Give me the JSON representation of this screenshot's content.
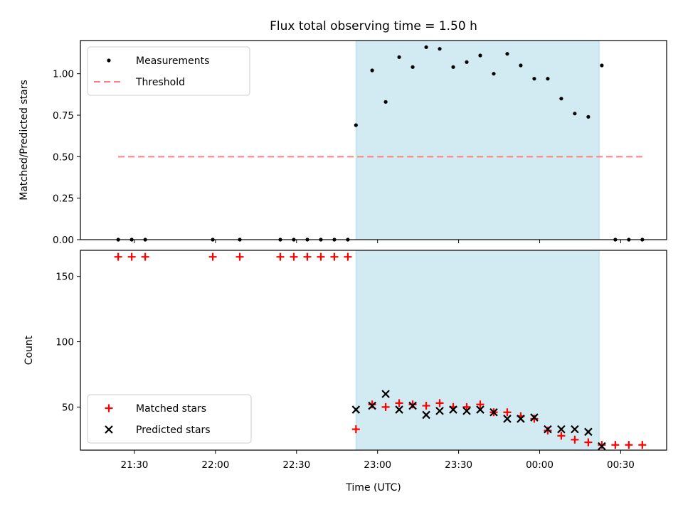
{
  "title": "Flux total observing time = 1.50 h",
  "x_axis": {
    "label": "Time (UTC)",
    "tick_labels": [
      "21:30",
      "22:00",
      "22:30",
      "23:00",
      "23:30",
      "00:00",
      "00:30"
    ]
  },
  "colors": {
    "measurements": "#000000",
    "threshold": "#ff7f7f",
    "matched": "#ff0000",
    "predicted": "#000000",
    "observing_window": "#add8e6"
  },
  "chart_data": [
    {
      "type": "scatter",
      "panel": "top",
      "ylabel": "Matched/Predicted stars",
      "ylim": [
        0,
        1.2
      ],
      "yticks": [
        0.0,
        0.25,
        0.5,
        0.75,
        1.0
      ],
      "ytick_labels": [
        "0.00",
        "0.25",
        "0.50",
        "0.75",
        "1.00"
      ],
      "xlim": [
        "21:10",
        "00:47"
      ],
      "shaded_region": [
        "22:52",
        "00:22"
      ],
      "legend": {
        "position": "upper-left"
      },
      "series": [
        {
          "name": "Measurements",
          "marker": "dot",
          "x": [
            "21:24",
            "21:29",
            "21:34",
            "21:59",
            "22:09",
            "22:24",
            "22:29",
            "22:34",
            "22:39",
            "22:44",
            "22:49",
            "22:52",
            "22:58",
            "23:03",
            "23:08",
            "23:13",
            "23:18",
            "23:23",
            "23:28",
            "23:33",
            "23:38",
            "23:43",
            "23:48",
            "23:53",
            "23:58",
            "00:03",
            "00:08",
            "00:13",
            "00:18",
            "00:23",
            "00:28",
            "00:33",
            "00:38"
          ],
          "y": [
            0,
            0,
            0,
            0,
            0,
            0,
            0,
            0,
            0,
            0,
            0,
            0.69,
            1.02,
            0.83,
            1.1,
            1.04,
            1.16,
            1.15,
            1.04,
            1.07,
            1.11,
            1.0,
            1.12,
            1.05,
            0.97,
            0.97,
            0.85,
            0.76,
            0.74,
            1.05,
            0,
            0,
            0
          ]
        },
        {
          "name": "Threshold",
          "style": "dashed",
          "x": [
            "21:24",
            "00:38"
          ],
          "y": [
            0.5,
            0.5
          ]
        }
      ]
    },
    {
      "type": "scatter",
      "panel": "bottom",
      "ylabel": "Count",
      "ylim": [
        17,
        170
      ],
      "yticks": [
        50,
        100,
        150
      ],
      "ytick_labels": [
        "50",
        "100",
        "150"
      ],
      "xlim": [
        "21:10",
        "00:47"
      ],
      "shaded_region": [
        "22:52",
        "00:22"
      ],
      "legend": {
        "position": "lower-left"
      },
      "series": [
        {
          "name": "Matched stars",
          "marker": "plus",
          "x": [
            "21:24",
            "21:29",
            "21:34",
            "21:59",
            "22:09",
            "22:24",
            "22:29",
            "22:34",
            "22:39",
            "22:44",
            "22:49",
            "22:52",
            "22:58",
            "23:03",
            "23:08",
            "23:13",
            "23:18",
            "23:23",
            "23:28",
            "23:33",
            "23:38",
            "23:43",
            "23:48",
            "23:53",
            "23:58",
            "00:03",
            "00:08",
            "00:13",
            "00:18",
            "00:23",
            "00:28",
            "00:33",
            "00:38"
          ],
          "y": [
            165,
            165,
            165,
            165,
            165,
            165,
            165,
            165,
            165,
            165,
            165,
            33,
            52,
            50,
            53,
            52,
            51,
            53,
            50,
            50,
            52,
            46,
            46,
            43,
            41,
            32,
            28,
            25,
            23,
            21,
            21,
            21,
            21
          ]
        },
        {
          "name": "Predicted stars",
          "marker": "x",
          "x": [
            "22:52",
            "22:58",
            "23:03",
            "23:08",
            "23:13",
            "23:18",
            "23:23",
            "23:28",
            "23:33",
            "23:38",
            "23:43",
            "23:48",
            "23:53",
            "23:58",
            "00:03",
            "00:08",
            "00:13",
            "00:18",
            "00:23"
          ],
          "y": [
            48,
            51,
            60,
            48,
            51,
            44,
            47,
            48,
            47,
            48,
            46,
            41,
            41,
            42,
            33,
            33,
            33,
            31,
            20
          ]
        }
      ]
    }
  ]
}
